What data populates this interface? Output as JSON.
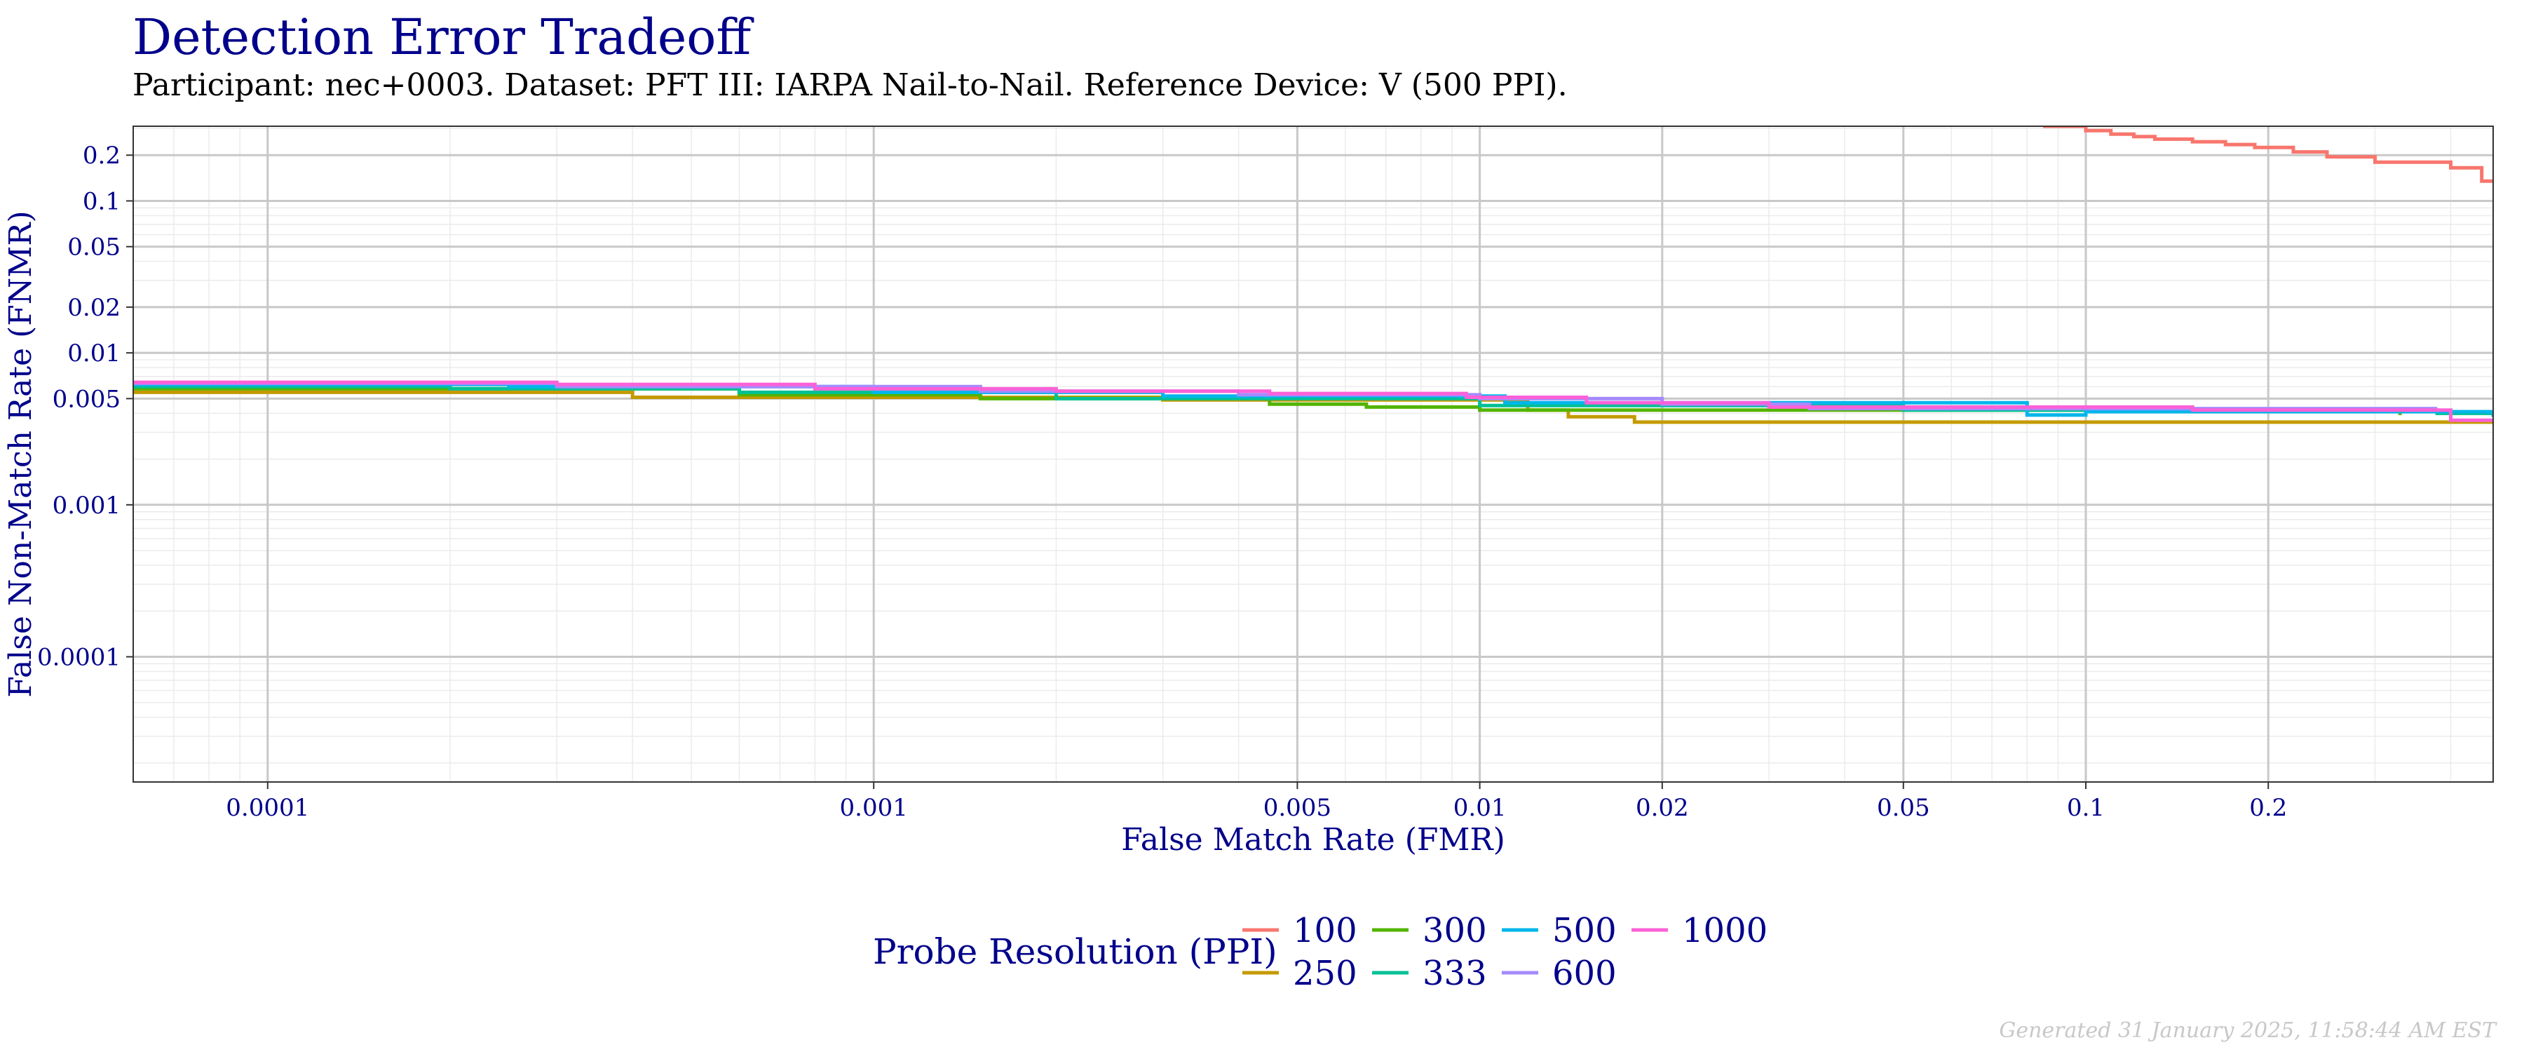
{
  "title": "Detection Error Tradeoff",
  "subtitle": "Participant: nec+0003. Dataset: PFT III: IARPA Nail-to-Nail. Reference Device: V (500 PPI).",
  "footer": "Generated 31 January 2025, 11:58:44 AM EST",
  "chart_data": {
    "type": "line",
    "step": true,
    "xlabel": "False Match Rate (FMR)",
    "ylabel": "False Non-Match Rate (FNMR)",
    "x_scale": "log",
    "y_scale": "log",
    "xlim": [
      6e-05,
      0.47
    ],
    "ylim": [
      1.5e-05,
      0.31
    ],
    "x_ticks": [
      0.0001,
      0.001,
      0.005,
      0.01,
      0.02,
      0.05,
      0.1,
      0.2
    ],
    "x_tick_labels": [
      "0.0001",
      "0.001",
      "0.005",
      "0.01",
      "0.02",
      "0.05",
      "0.1",
      "0.2"
    ],
    "y_ticks": [
      0.0001,
      0.001,
      0.005,
      0.01,
      0.02,
      0.05,
      0.1,
      0.2
    ],
    "y_tick_labels": [
      "0.0001",
      "0.001",
      "0.005",
      "0.01",
      "0.02",
      "0.05",
      "0.1",
      "0.2"
    ],
    "grid": true,
    "legend_title": "Probe Resolution (PPI)",
    "legend_position": "bottom",
    "series": [
      {
        "name": "100",
        "color": "#f8766d",
        "x": [
          0.085,
          0.1,
          0.11,
          0.12,
          0.13,
          0.15,
          0.17,
          0.19,
          0.22,
          0.25,
          0.3,
          0.4,
          0.45,
          0.47
        ],
        "y": [
          0.31,
          0.29,
          0.275,
          0.265,
          0.255,
          0.245,
          0.235,
          0.225,
          0.21,
          0.195,
          0.18,
          0.165,
          0.135,
          0.135
        ]
      },
      {
        "name": "250",
        "color": "#c49a00",
        "x": [
          6e-05,
          0.0004,
          0.003,
          0.012,
          0.014,
          0.018,
          0.05,
          0.2,
          0.47
        ],
        "y": [
          0.0055,
          0.0051,
          0.0049,
          0.0042,
          0.0038,
          0.0035,
          0.0035,
          0.0035,
          0.0034
        ]
      },
      {
        "name": "300",
        "color": "#53b400",
        "x": [
          6e-05,
          0.0006,
          0.0015,
          0.0045,
          0.0065,
          0.01,
          0.3,
          0.33
        ],
        "y": [
          0.0058,
          0.0053,
          0.005,
          0.0046,
          0.0044,
          0.0042,
          0.0042,
          0.0039
        ]
      },
      {
        "name": "333",
        "color": "#00c094",
        "x": [
          6e-05,
          0.0002,
          0.0006,
          0.002,
          0.01,
          0.05,
          0.38,
          0.47
        ],
        "y": [
          0.006,
          0.0058,
          0.0055,
          0.005,
          0.0045,
          0.0042,
          0.004,
          0.0038
        ]
      },
      {
        "name": "500",
        "color": "#00b6eb",
        "x": [
          6e-05,
          0.00025,
          0.001,
          0.003,
          0.011,
          0.08,
          0.1,
          0.47
        ],
        "y": [
          0.0062,
          0.006,
          0.0055,
          0.0052,
          0.0047,
          0.0039,
          0.0041,
          0.0038
        ]
      },
      {
        "name": "600",
        "color": "#a58aff",
        "x": [
          6e-05,
          0.0003,
          0.0015,
          0.004,
          0.01,
          0.02,
          0.035,
          0.38
        ],
        "y": [
          0.0063,
          0.006,
          0.0056,
          0.0053,
          0.005,
          0.0046,
          0.0043,
          0.0043
        ]
      },
      {
        "name": "1000",
        "color": "#fb61d7",
        "x": [
          6e-05,
          0.0003,
          0.0008,
          0.002,
          0.0045,
          0.0095,
          0.015,
          0.03,
          0.15,
          0.4,
          0.47
        ],
        "y": [
          0.0064,
          0.0062,
          0.0058,
          0.0056,
          0.0054,
          0.0051,
          0.0047,
          0.0044,
          0.0042,
          0.0036,
          0.0036
        ]
      }
    ]
  }
}
